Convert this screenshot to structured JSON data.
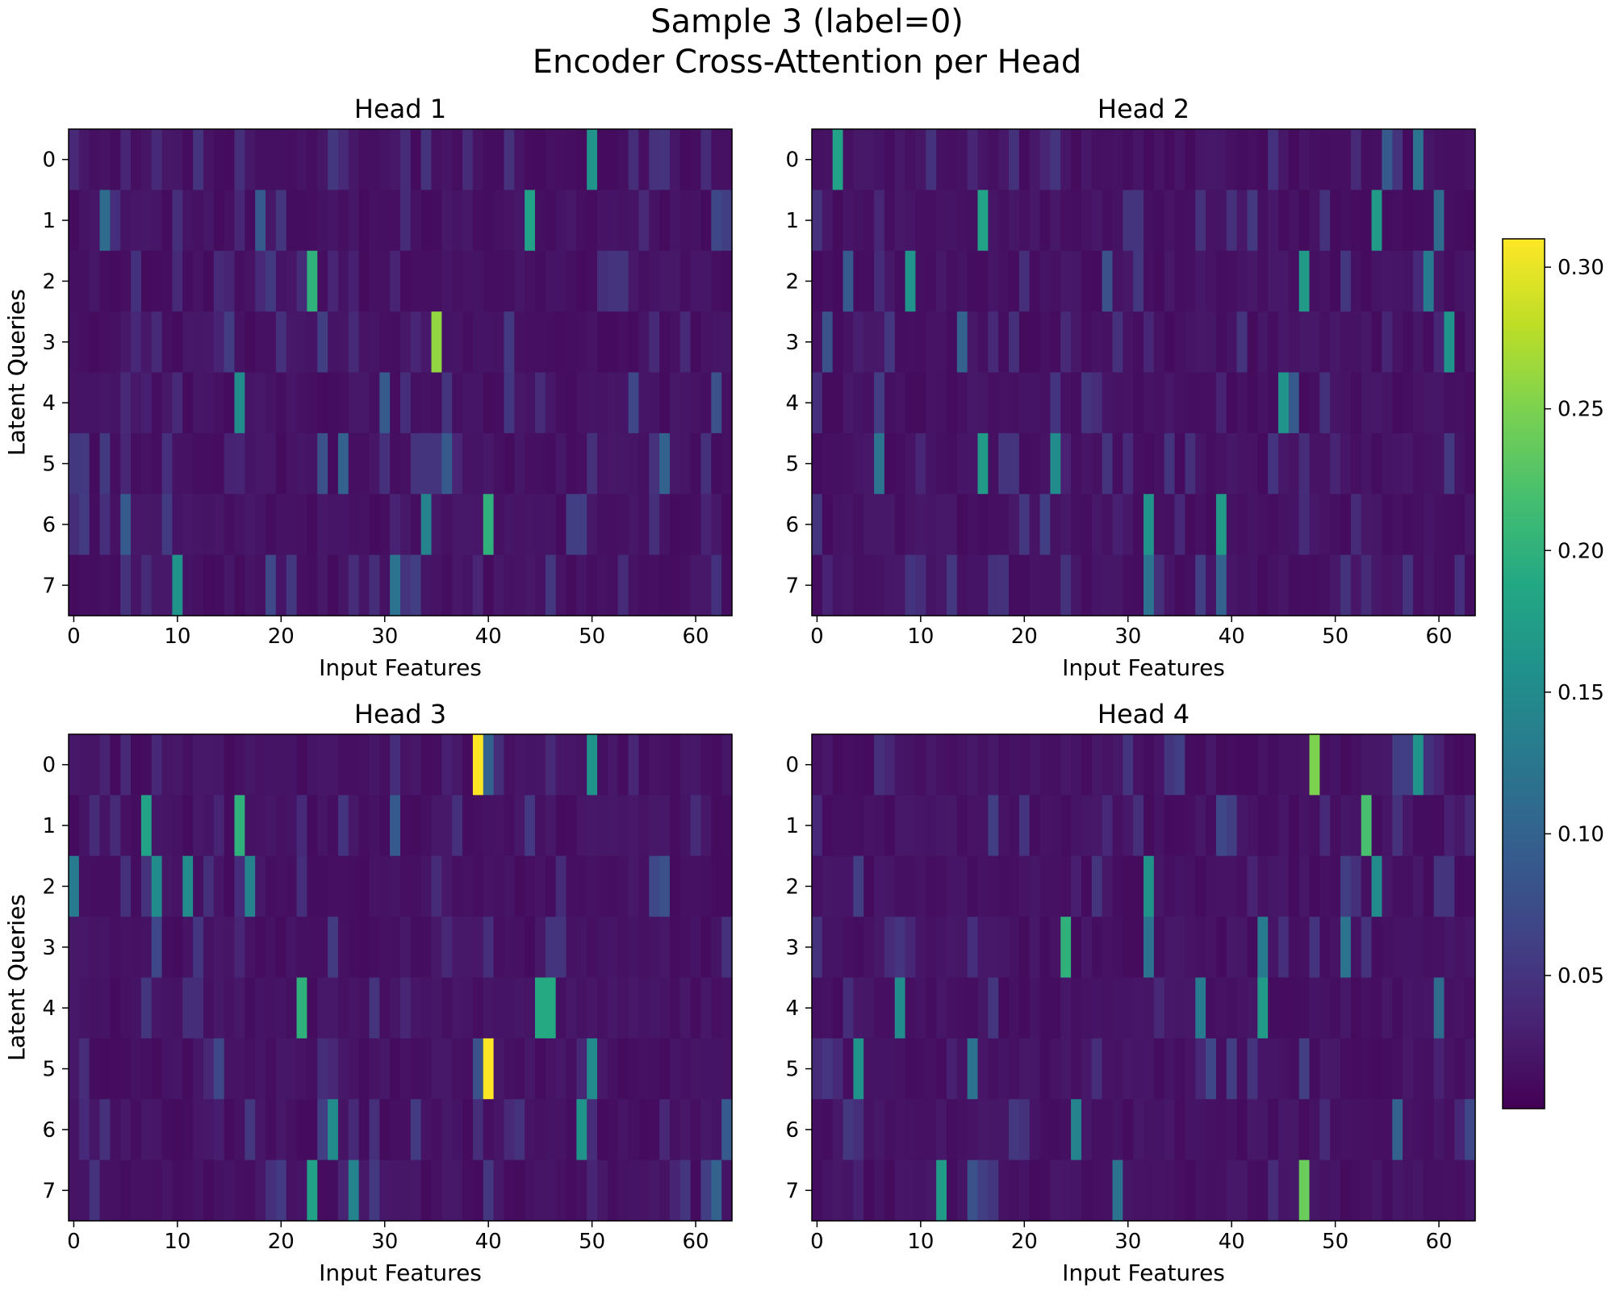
{
  "figure": {
    "title_line1": "Sample 3 (label=0)",
    "title_line2": "Encoder Cross-Attention per Head"
  },
  "chart_data": {
    "type": "heatmap",
    "colormap": "viridis",
    "colorbar": {
      "min": 0.003,
      "max": 0.31,
      "ticks": [
        "0.05",
        "0.10",
        "0.15",
        "0.20",
        "0.25",
        "0.30"
      ],
      "tick_values": [
        0.05,
        0.1,
        0.15,
        0.2,
        0.25,
        0.3
      ]
    },
    "x_ticks": [
      "0",
      "10",
      "20",
      "30",
      "40",
      "50",
      "60"
    ],
    "x_tick_values": [
      0,
      10,
      20,
      30,
      40,
      50,
      60
    ],
    "y_ticks": [
      "0",
      "1",
      "2",
      "3",
      "4",
      "5",
      "6",
      "7"
    ],
    "n_cols": 64,
    "n_rows": 8,
    "base_value": 0.012,
    "panels": [
      {
        "title": "Head 1",
        "xlabel": "Input Features",
        "ylabel": "Latent Queries",
        "highlights": [
          [
            0,
            50,
            0.16
          ],
          [
            0,
            12,
            0.05
          ],
          [
            0,
            8,
            0.04
          ],
          [
            0,
            57,
            0.05
          ],
          [
            0,
            26,
            0.04
          ],
          [
            1,
            44,
            0.18
          ],
          [
            1,
            3,
            0.11
          ],
          [
            1,
            18,
            0.09
          ],
          [
            1,
            62,
            0.07
          ],
          [
            1,
            63,
            0.06
          ],
          [
            2,
            23,
            0.2
          ],
          [
            2,
            10,
            0.04
          ],
          [
            2,
            52,
            0.05
          ],
          [
            2,
            53,
            0.05
          ],
          [
            3,
            35,
            0.26
          ],
          [
            3,
            24,
            0.06
          ],
          [
            3,
            8,
            0.04
          ],
          [
            3,
            59,
            0.04
          ],
          [
            4,
            16,
            0.15
          ],
          [
            4,
            30,
            0.09
          ],
          [
            4,
            54,
            0.07
          ],
          [
            4,
            62,
            0.08
          ],
          [
            4,
            10,
            0.04
          ],
          [
            4,
            36,
            0.05
          ],
          [
            5,
            57,
            0.1
          ],
          [
            5,
            26,
            0.1
          ],
          [
            5,
            24,
            0.08
          ],
          [
            5,
            36,
            0.09
          ],
          [
            5,
            33,
            0.05
          ],
          [
            5,
            34,
            0.05
          ],
          [
            5,
            35,
            0.05
          ],
          [
            6,
            40,
            0.2
          ],
          [
            6,
            34,
            0.14
          ],
          [
            6,
            5,
            0.09
          ],
          [
            6,
            49,
            0.06
          ],
          [
            6,
            48,
            0.06
          ],
          [
            7,
            10,
            0.16
          ],
          [
            7,
            31,
            0.12
          ],
          [
            7,
            33,
            0.06
          ],
          [
            7,
            19,
            0.07
          ],
          [
            7,
            32,
            0.05
          ]
        ]
      },
      {
        "title": "Head 2",
        "xlabel": "Input Features",
        "ylabel": "Latent Queries",
        "highlights": [
          [
            0,
            2,
            0.18
          ],
          [
            0,
            55,
            0.09
          ],
          [
            0,
            58,
            0.12
          ],
          [
            0,
            56,
            0.05
          ],
          [
            1,
            16,
            0.18
          ],
          [
            1,
            54,
            0.17
          ],
          [
            1,
            60,
            0.11
          ],
          [
            1,
            30,
            0.05
          ],
          [
            1,
            31,
            0.05
          ],
          [
            2,
            9,
            0.16
          ],
          [
            2,
            47,
            0.17
          ],
          [
            2,
            59,
            0.13
          ],
          [
            2,
            3,
            0.09
          ],
          [
            2,
            28,
            0.08
          ],
          [
            3,
            61,
            0.16
          ],
          [
            3,
            14,
            0.1
          ],
          [
            3,
            1,
            0.08
          ],
          [
            3,
            41,
            0.05
          ],
          [
            4,
            45,
            0.16
          ],
          [
            4,
            46,
            0.09
          ],
          [
            4,
            6,
            0.06
          ],
          [
            5,
            16,
            0.17
          ],
          [
            5,
            23,
            0.15
          ],
          [
            5,
            6,
            0.12
          ],
          [
            5,
            34,
            0.05
          ],
          [
            6,
            32,
            0.16
          ],
          [
            6,
            39,
            0.17
          ],
          [
            6,
            22,
            0.06
          ],
          [
            7,
            32,
            0.12
          ],
          [
            7,
            39,
            0.1
          ],
          [
            7,
            37,
            0.06
          ],
          [
            7,
            57,
            0.05
          ]
        ]
      },
      {
        "title": "Head 3",
        "xlabel": "Input Features",
        "ylabel": "Latent Queries",
        "highlights": [
          [
            0,
            39,
            0.31
          ],
          [
            0,
            50,
            0.16
          ],
          [
            0,
            40,
            0.1
          ],
          [
            1,
            7,
            0.18
          ],
          [
            1,
            16,
            0.2
          ],
          [
            1,
            31,
            0.09
          ],
          [
            2,
            0,
            0.13
          ],
          [
            2,
            8,
            0.15
          ],
          [
            2,
            11,
            0.15
          ],
          [
            2,
            17,
            0.14
          ],
          [
            2,
            56,
            0.07
          ],
          [
            2,
            57,
            0.08
          ],
          [
            3,
            8,
            0.07
          ],
          [
            3,
            46,
            0.05
          ],
          [
            3,
            47,
            0.05
          ],
          [
            4,
            22,
            0.2
          ],
          [
            4,
            45,
            0.19
          ],
          [
            4,
            46,
            0.19
          ],
          [
            5,
            40,
            0.31
          ],
          [
            5,
            39,
            0.08
          ],
          [
            5,
            50,
            0.15
          ],
          [
            5,
            14,
            0.07
          ],
          [
            6,
            25,
            0.15
          ],
          [
            6,
            49,
            0.16
          ],
          [
            6,
            63,
            0.09
          ],
          [
            6,
            24,
            0.06
          ],
          [
            7,
            23,
            0.18
          ],
          [
            7,
            27,
            0.14
          ],
          [
            7,
            62,
            0.1
          ],
          [
            7,
            61,
            0.06
          ]
        ]
      },
      {
        "title": "Head 4",
        "xlabel": "Input Features",
        "ylabel": "Latent Queries",
        "highlights": [
          [
            0,
            48,
            0.25
          ],
          [
            0,
            58,
            0.16
          ],
          [
            0,
            56,
            0.06
          ],
          [
            0,
            57,
            0.06
          ],
          [
            0,
            35,
            0.06
          ],
          [
            0,
            30,
            0.05
          ],
          [
            1,
            53,
            0.22
          ],
          [
            1,
            39,
            0.07
          ],
          [
            1,
            40,
            0.06
          ],
          [
            1,
            17,
            0.06
          ],
          [
            2,
            32,
            0.16
          ],
          [
            2,
            54,
            0.15
          ],
          [
            2,
            4,
            0.06
          ],
          [
            2,
            51,
            0.06
          ],
          [
            2,
            61,
            0.05
          ],
          [
            3,
            24,
            0.2
          ],
          [
            3,
            32,
            0.12
          ],
          [
            3,
            43,
            0.13
          ],
          [
            3,
            51,
            0.12
          ],
          [
            4,
            8,
            0.15
          ],
          [
            4,
            37,
            0.13
          ],
          [
            4,
            43,
            0.17
          ],
          [
            4,
            60,
            0.11
          ],
          [
            5,
            4,
            0.16
          ],
          [
            5,
            15,
            0.12
          ],
          [
            5,
            38,
            0.07
          ],
          [
            5,
            40,
            0.06
          ],
          [
            5,
            42,
            0.05
          ],
          [
            5,
            47,
            0.06
          ],
          [
            6,
            25,
            0.14
          ],
          [
            6,
            56,
            0.1
          ],
          [
            6,
            63,
            0.07
          ],
          [
            7,
            12,
            0.17
          ],
          [
            7,
            15,
            0.08
          ],
          [
            7,
            29,
            0.12
          ],
          [
            7,
            47,
            0.24
          ],
          [
            7,
            16,
            0.06
          ]
        ]
      }
    ]
  }
}
